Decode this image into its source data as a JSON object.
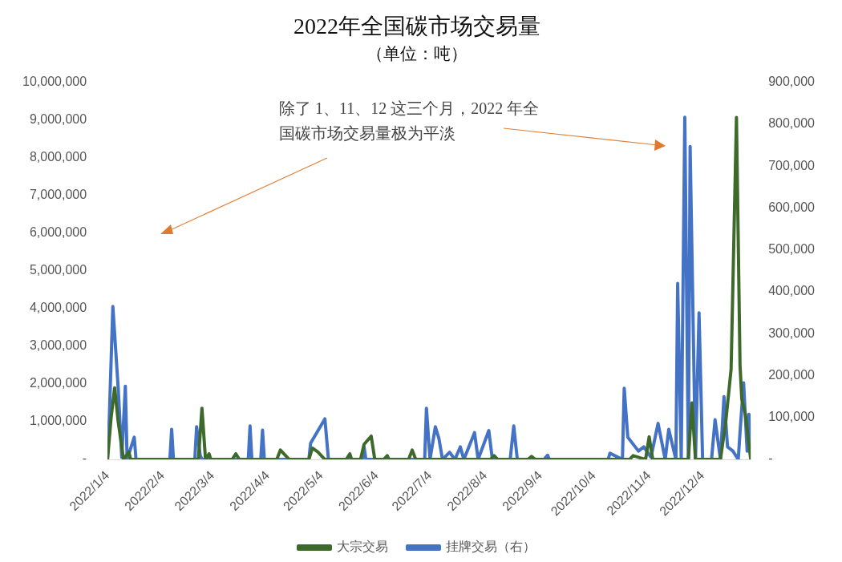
{
  "chart_data": {
    "type": "line",
    "title": "2022年全国碳市场交易量",
    "subtitle": "（单位：吨）",
    "annotations": [
      "除了 1、11、12 这三个月，2022 年全国碳市场交易量极为平淡"
    ],
    "legend": "bottom",
    "grid": false,
    "marker": "none",
    "line_style": "solid",
    "xlim": [
      "2022-01-04",
      "2022-12-31"
    ],
    "xticks": [
      {
        "value": "2022-01-04",
        "label": "2022/1/4"
      },
      {
        "value": "2022-02-04",
        "label": "2022/2/4"
      },
      {
        "value": "2022-03-04",
        "label": "2022/3/4"
      },
      {
        "value": "2022-04-04",
        "label": "2022/4/4"
      },
      {
        "value": "2022-05-04",
        "label": "2022/5/4"
      },
      {
        "value": "2022-06-04",
        "label": "2022/6/4"
      },
      {
        "value": "2022-07-04",
        "label": "2022/7/4"
      },
      {
        "value": "2022-08-04",
        "label": "2022/8/4"
      },
      {
        "value": "2022-09-04",
        "label": "2022/9/4"
      },
      {
        "value": "2022-10-04",
        "label": "2022/10/4"
      },
      {
        "value": "2022-11-04",
        "label": "2022/11/4"
      },
      {
        "value": "2022-12-04",
        "label": "2022/12/4"
      }
    ],
    "ylim": [
      0,
      10000000
    ],
    "yticks": [
      {
        "value": 0,
        "label": "-"
      },
      {
        "value": 1000000,
        "label": "1,000,000"
      },
      {
        "value": 2000000,
        "label": "2,000,000"
      },
      {
        "value": 3000000,
        "label": "3,000,000"
      },
      {
        "value": 4000000,
        "label": "4,000,000"
      },
      {
        "value": 5000000,
        "label": "5,000,000"
      },
      {
        "value": 6000000,
        "label": "6,000,000"
      },
      {
        "value": 7000000,
        "label": "7,000,000"
      },
      {
        "value": 8000000,
        "label": "8,000,000"
      },
      {
        "value": 9000000,
        "label": "9,000,000"
      },
      {
        "value": 10000000,
        "label": "10,000,000"
      }
    ],
    "y2lim": [
      0,
      900000
    ],
    "y2ticks": [
      {
        "value": 0,
        "label": "-"
      },
      {
        "value": 100000,
        "label": "100,000"
      },
      {
        "value": 200000,
        "label": "200,000"
      },
      {
        "value": 300000,
        "label": "300,000"
      },
      {
        "value": 400000,
        "label": "400,000"
      },
      {
        "value": 500000,
        "label": "500,000"
      },
      {
        "value": 600000,
        "label": "600,000"
      },
      {
        "value": 700000,
        "label": "700,000"
      },
      {
        "value": 800000,
        "label": "800,000"
      },
      {
        "value": 900000,
        "label": "900,000"
      }
    ],
    "series": [
      {
        "name": "大宗交易",
        "color": "#3d6a2b",
        "axis": "y",
        "x": [
          "2022-01-04",
          "2022-01-06",
          "2022-01-08",
          "2022-01-10",
          "2022-01-13",
          "2022-01-16",
          "2022-01-17",
          "2022-02-24",
          "2022-02-26",
          "2022-02-28",
          "2022-03-02",
          "2022-03-03",
          "2022-03-15",
          "2022-03-17",
          "2022-03-19",
          "2022-04-09",
          "2022-04-11",
          "2022-04-14",
          "2022-04-16",
          "2022-04-27",
          "2022-04-29",
          "2022-05-02",
          "2022-05-06",
          "2022-05-18",
          "2022-05-20",
          "2022-05-21",
          "2022-05-26",
          "2022-05-28",
          "2022-06-01",
          "2022-06-03",
          "2022-06-08",
          "2022-06-10",
          "2022-06-11",
          "2022-06-22",
          "2022-06-24",
          "2022-06-26",
          "2022-08-07",
          "2022-08-09",
          "2022-08-11",
          "2022-08-28",
          "2022-08-30",
          "2022-09-01",
          "2022-10-24",
          "2022-10-26",
          "2022-11-02",
          "2022-11-04",
          "2022-11-06",
          "2022-11-26",
          "2022-11-28",
          "2022-11-30",
          "2022-12-14",
          "2022-12-17",
          "2022-12-20",
          "2022-12-23",
          "2022-12-25",
          "2022-12-26",
          "2022-12-28",
          "2022-12-31"
        ],
        "values": [
          0,
          1100000,
          1900000,
          1000000,
          0,
          200000,
          0,
          0,
          1360000,
          0,
          150000,
          0,
          0,
          150000,
          0,
          0,
          250000,
          100000,
          0,
          0,
          300000,
          200000,
          0,
          0,
          150000,
          0,
          0,
          400000,
          620000,
          0,
          0,
          100000,
          0,
          0,
          250000,
          0,
          0,
          100000,
          0,
          0,
          80000,
          0,
          0,
          100000,
          0,
          600000,
          0,
          0,
          1500000,
          0,
          0,
          1000000,
          2400000,
          9070000,
          2500000,
          1600000,
          1200000,
          0
        ]
      },
      {
        "name": "挂牌交易（右）",
        "color": "#4472c4",
        "axis": "y2",
        "x": [
          "2022-01-04",
          "2022-01-05",
          "2022-01-07",
          "2022-01-10",
          "2022-01-12",
          "2022-01-14",
          "2022-01-15",
          "2022-01-19",
          "2022-01-20",
          "2022-02-08",
          "2022-02-09",
          "2022-02-10",
          "2022-02-22",
          "2022-02-23",
          "2022-02-25",
          "2022-02-26",
          "2022-03-24",
          "2022-03-25",
          "2022-03-26",
          "2022-03-31",
          "2022-04-01",
          "2022-04-02",
          "2022-04-27",
          "2022-04-28",
          "2022-05-06",
          "2022-05-08",
          "2022-05-27",
          "2022-05-28",
          "2022-05-29",
          "2022-07-01",
          "2022-07-02",
          "2022-07-04",
          "2022-07-07",
          "2022-07-09",
          "2022-07-11",
          "2022-07-15",
          "2022-07-18",
          "2022-07-21",
          "2022-07-23",
          "2022-07-29",
          "2022-07-31",
          "2022-08-06",
          "2022-08-08",
          "2022-08-18",
          "2022-08-20",
          "2022-08-22",
          "2022-09-06",
          "2022-09-08",
          "2022-09-09",
          "2022-10-12",
          "2022-10-13",
          "2022-10-20",
          "2022-10-21",
          "2022-10-23",
          "2022-10-29",
          "2022-11-01",
          "2022-11-05",
          "2022-11-09",
          "2022-11-13",
          "2022-11-15",
          "2022-11-19",
          "2022-11-20",
          "2022-11-22",
          "2022-11-24",
          "2022-11-26",
          "2022-11-27",
          "2022-11-30",
          "2022-12-02",
          "2022-12-04",
          "2022-12-09",
          "2022-12-11",
          "2022-12-14",
          "2022-12-16",
          "2022-12-18",
          "2022-12-21",
          "2022-12-24",
          "2022-12-25",
          "2022-12-27",
          "2022-12-29",
          "2022-12-30",
          "2022-12-31"
        ],
        "values": [
          0,
          100000,
          365000,
          170000,
          5000,
          175000,
          0,
          53000,
          0,
          0,
          72000,
          0,
          0,
          78000,
          10000,
          0,
          0,
          80000,
          0,
          0,
          70000,
          0,
          0,
          39000,
          97000,
          0,
          0,
          30000,
          0,
          0,
          122000,
          0,
          78000,
          50000,
          0,
          17000,
          0,
          30000,
          0,
          64000,
          0,
          69000,
          0,
          0,
          80000,
          0,
          0,
          10000,
          0,
          0,
          15000,
          0,
          170000,
          53000,
          20000,
          30000,
          5000,
          86000,
          0,
          72000,
          0,
          420000,
          0,
          817000,
          0,
          747000,
          0,
          350000,
          0,
          0,
          95000,
          0,
          150000,
          30000,
          20000,
          0,
          65000,
          183000,
          20000,
          108000,
          30000
        ]
      }
    ]
  }
}
